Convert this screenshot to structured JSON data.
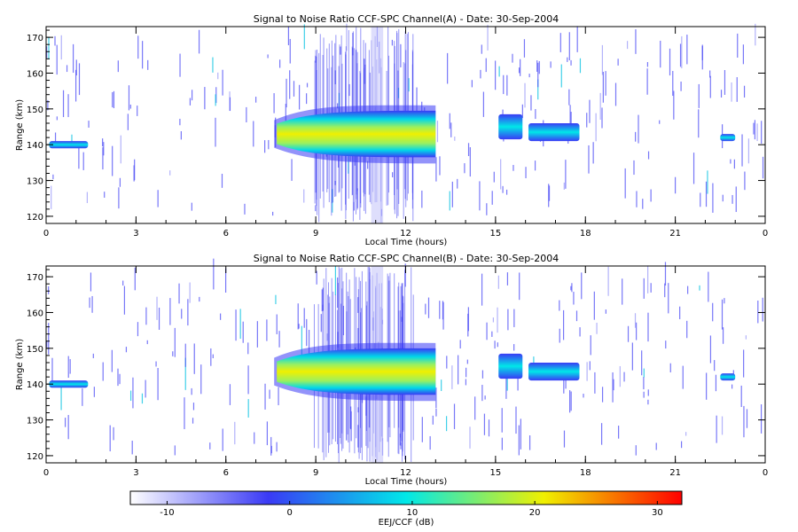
{
  "colorbar": {
    "label": "EEJ/CCF (dB)",
    "range": [
      -13,
      32
    ],
    "ticks": [
      "-10",
      "0",
      "10",
      "20",
      "30"
    ],
    "tick_values": [
      -10,
      0,
      10,
      20,
      30
    ],
    "colors": [
      "#ffffff",
      "#3a3af5",
      "#00e8e8",
      "#f0f000",
      "#ff0000"
    ]
  },
  "chart_data": [
    {
      "type": "heatmap",
      "title": "Signal to Noise Ratio CCF-SPC Channel(A) - Date: 30-Sep-2004",
      "xlabel": "Local Time (hours)",
      "ylabel": "Range (km)",
      "xlim": [
        0,
        24
      ],
      "ylim": [
        118,
        173
      ],
      "x_ticks": [
        "0",
        "3",
        "6",
        "9",
        "12",
        "15",
        "18",
        "21",
        "0"
      ],
      "x_tick_values": [
        0,
        3,
        6,
        9,
        12,
        15,
        18,
        21,
        24
      ],
      "y_ticks": [
        "120",
        "130",
        "140",
        "150",
        "160",
        "170"
      ],
      "y_tick_values": [
        120,
        130,
        140,
        150,
        160,
        170
      ],
      "regions": [
        {
          "t0": 0.1,
          "t1": 1.4,
          "center_km": 140.0,
          "half_width_km": 1.0,
          "snr_db": 2
        },
        {
          "t0": 7.7,
          "t1": 13.0,
          "center_km": 143.0,
          "half_width_km": 6.5,
          "snr_db": 14
        },
        {
          "t0": 15.1,
          "t1": 15.9,
          "center_km": 145.0,
          "half_width_km": 3.5,
          "snr_db": 5
        },
        {
          "t0": 16.1,
          "t1": 17.8,
          "center_km": 143.5,
          "half_width_km": 2.5,
          "snr_db": 6
        },
        {
          "t0": 22.5,
          "t1": 23.0,
          "center_km": 142.0,
          "half_width_km": 1.0,
          "snr_db": -4
        }
      ]
    },
    {
      "type": "heatmap",
      "title": "Signal to Noise Ratio CCF-SPC Channel(B) - Date: 30-Sep-2004",
      "xlabel": "Local Time (hours)",
      "ylabel": "Range (km)",
      "xlim": [
        0,
        24
      ],
      "ylim": [
        118,
        173
      ],
      "x_ticks": [
        "0",
        "3",
        "6",
        "9",
        "12",
        "15",
        "18",
        "21",
        "0"
      ],
      "x_tick_values": [
        0,
        3,
        6,
        9,
        12,
        15,
        18,
        21,
        24
      ],
      "y_ticks": [
        "120",
        "130",
        "140",
        "150",
        "160",
        "170"
      ],
      "y_tick_values": [
        120,
        130,
        140,
        150,
        160,
        170
      ],
      "regions": [
        {
          "t0": 0.1,
          "t1": 1.4,
          "center_km": 140.0,
          "half_width_km": 1.0,
          "snr_db": 2
        },
        {
          "t0": 7.7,
          "t1": 13.0,
          "center_km": 143.5,
          "half_width_km": 6.5,
          "snr_db": 15
        },
        {
          "t0": 15.1,
          "t1": 15.9,
          "center_km": 145.0,
          "half_width_km": 3.5,
          "snr_db": 5
        },
        {
          "t0": 16.1,
          "t1": 17.8,
          "center_km": 143.5,
          "half_width_km": 2.5,
          "snr_db": 6
        },
        {
          "t0": 22.5,
          "t1": 23.0,
          "center_km": 142.0,
          "half_width_km": 1.0,
          "snr_db": -4
        }
      ]
    }
  ]
}
